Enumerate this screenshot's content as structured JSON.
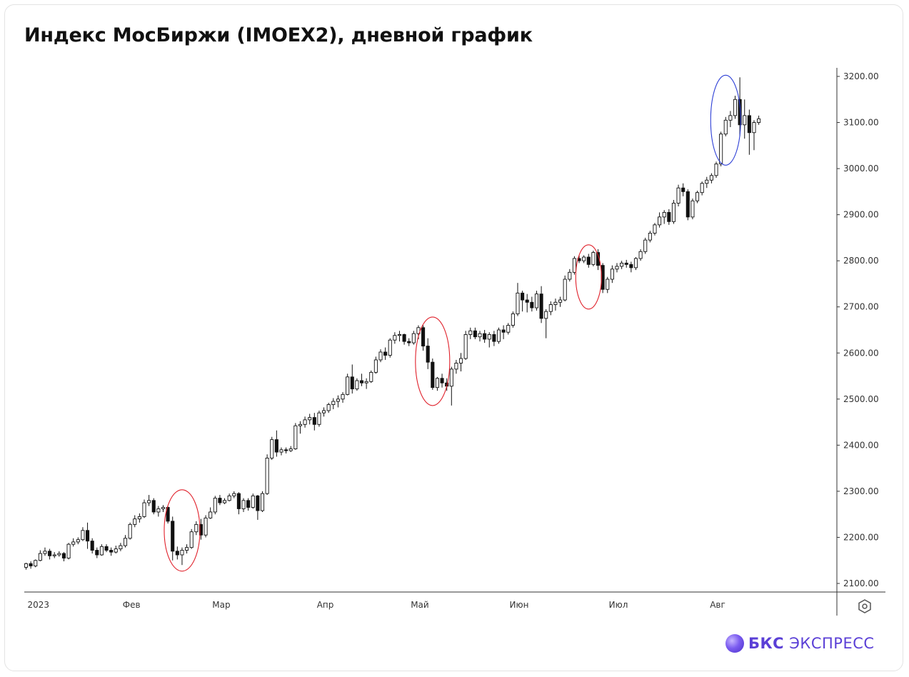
{
  "title": "Индекс МосБиржи (IMOEX2), дневной график",
  "brand": {
    "strong": "БКС",
    "rest": " ЭКСПРЕСС",
    "logo_icon": "bcs-sphere-icon"
  },
  "settings_icon": "settings-hexagon-icon",
  "chart_data": {
    "type": "candlestick",
    "title": "Индекс МосБиржи (IMOEX2), дневной график",
    "y_ticks": [
      "2100.00",
      "2200.00",
      "2300.00",
      "2400.00",
      "2500.00",
      "2600.00",
      "2700.00",
      "2800.00",
      "2900.00",
      "3000.00",
      "3100.00",
      "3200.00"
    ],
    "ylim": [
      2082,
      3220
    ],
    "x_ticks": [
      {
        "label": "2023",
        "index": 0
      },
      {
        "label": "Фев",
        "index": 22
      },
      {
        "label": "Мар",
        "index": 41
      },
      {
        "label": "Апр",
        "index": 63
      },
      {
        "label": "Май",
        "index": 83
      },
      {
        "label": "Июн",
        "index": 104
      },
      {
        "label": "Июл",
        "index": 125
      },
      {
        "label": "Авг",
        "index": 146
      }
    ],
    "candles": [
      [
        2135,
        2145,
        2130,
        2143
      ],
      [
        2143,
        2148,
        2132,
        2138
      ],
      [
        2138,
        2152,
        2135,
        2150
      ],
      [
        2150,
        2172,
        2148,
        2165
      ],
      [
        2165,
        2178,
        2160,
        2170
      ],
      [
        2170,
        2175,
        2152,
        2160
      ],
      [
        2160,
        2168,
        2155,
        2162
      ],
      [
        2162,
        2170,
        2158,
        2165
      ],
      [
        2165,
        2168,
        2148,
        2155
      ],
      [
        2155,
        2188,
        2152,
        2185
      ],
      [
        2185,
        2198,
        2180,
        2190
      ],
      [
        2190,
        2200,
        2185,
        2195
      ],
      [
        2195,
        2222,
        2192,
        2215
      ],
      [
        2215,
        2232,
        2175,
        2192
      ],
      [
        2192,
        2198,
        2165,
        2172
      ],
      [
        2172,
        2178,
        2155,
        2162
      ],
      [
        2162,
        2185,
        2160,
        2180
      ],
      [
        2180,
        2185,
        2168,
        2172
      ],
      [
        2172,
        2178,
        2160,
        2168
      ],
      [
        2168,
        2182,
        2165,
        2175
      ],
      [
        2175,
        2188,
        2170,
        2182
      ],
      [
        2182,
        2205,
        2178,
        2198
      ],
      [
        2198,
        2232,
        2195,
        2228
      ],
      [
        2228,
        2248,
        2222,
        2240
      ],
      [
        2240,
        2252,
        2232,
        2245
      ],
      [
        2245,
        2282,
        2242,
        2275
      ],
      [
        2275,
        2292,
        2268,
        2280
      ],
      [
        2280,
        2285,
        2250,
        2255
      ],
      [
        2255,
        2268,
        2245,
        2262
      ],
      [
        2262,
        2270,
        2255,
        2265
      ],
      [
        2265,
        2268,
        2230,
        2235
      ],
      [
        2235,
        2245,
        2150,
        2170
      ],
      [
        2170,
        2180,
        2152,
        2162
      ],
      [
        2162,
        2178,
        2140,
        2172
      ],
      [
        2172,
        2185,
        2165,
        2178
      ],
      [
        2178,
        2218,
        2175,
        2212
      ],
      [
        2212,
        2235,
        2205,
        2228
      ],
      [
        2228,
        2240,
        2195,
        2205
      ],
      [
        2205,
        2248,
        2200,
        2242
      ],
      [
        2242,
        2265,
        2240,
        2255
      ],
      [
        2255,
        2290,
        2250,
        2285
      ],
      [
        2285,
        2292,
        2270,
        2275
      ],
      [
        2275,
        2285,
        2272,
        2280
      ],
      [
        2280,
        2295,
        2278,
        2290
      ],
      [
        2290,
        2300,
        2285,
        2295
      ],
      [
        2295,
        2298,
        2250,
        2262
      ],
      [
        2262,
        2285,
        2255,
        2280
      ],
      [
        2280,
        2285,
        2258,
        2265
      ],
      [
        2265,
        2295,
        2262,
        2290
      ],
      [
        2290,
        2292,
        2238,
        2258
      ],
      [
        2258,
        2300,
        2255,
        2295
      ],
      [
        2295,
        2380,
        2292,
        2372
      ],
      [
        2372,
        2418,
        2368,
        2412
      ],
      [
        2412,
        2432,
        2375,
        2385
      ],
      [
        2385,
        2395,
        2378,
        2390
      ],
      [
        2390,
        2395,
        2382,
        2388
      ],
      [
        2388,
        2398,
        2385,
        2392
      ],
      [
        2392,
        2448,
        2390,
        2442
      ],
      [
        2442,
        2452,
        2425,
        2445
      ],
      [
        2445,
        2462,
        2438,
        2455
      ],
      [
        2455,
        2468,
        2445,
        2460
      ],
      [
        2460,
        2470,
        2432,
        2445
      ],
      [
        2445,
        2475,
        2440,
        2470
      ],
      [
        2470,
        2482,
        2462,
        2475
      ],
      [
        2475,
        2492,
        2470,
        2488
      ],
      [
        2488,
        2502,
        2478,
        2495
      ],
      [
        2495,
        2508,
        2482,
        2500
      ],
      [
        2500,
        2515,
        2492,
        2510
      ],
      [
        2510,
        2555,
        2508,
        2548
      ],
      [
        2548,
        2575,
        2512,
        2522
      ],
      [
        2522,
        2545,
        2518,
        2540
      ],
      [
        2540,
        2555,
        2528,
        2535
      ],
      [
        2535,
        2545,
        2522,
        2538
      ],
      [
        2538,
        2562,
        2535,
        2558
      ],
      [
        2558,
        2592,
        2555,
        2585
      ],
      [
        2585,
        2608,
        2580,
        2602
      ],
      [
        2602,
        2612,
        2585,
        2595
      ],
      [
        2595,
        2632,
        2590,
        2628
      ],
      [
        2628,
        2645,
        2620,
        2638
      ],
      [
        2638,
        2648,
        2625,
        2640
      ],
      [
        2640,
        2642,
        2618,
        2625
      ],
      [
        2625,
        2632,
        2615,
        2622
      ],
      [
        2622,
        2648,
        2618,
        2642
      ],
      [
        2642,
        2660,
        2630,
        2655
      ],
      [
        2655,
        2660,
        2605,
        2615
      ],
      [
        2615,
        2632,
        2565,
        2580
      ],
      [
        2580,
        2588,
        2520,
        2525
      ],
      [
        2525,
        2548,
        2518,
        2545
      ],
      [
        2545,
        2555,
        2525,
        2535
      ],
      [
        2535,
        2545,
        2518,
        2528
      ],
      [
        2528,
        2570,
        2486,
        2565
      ],
      [
        2565,
        2585,
        2555,
        2578
      ],
      [
        2578,
        2600,
        2560,
        2588
      ],
      [
        2588,
        2648,
        2585,
        2640
      ],
      [
        2640,
        2655,
        2630,
        2648
      ],
      [
        2648,
        2655,
        2630,
        2635
      ],
      [
        2635,
        2648,
        2625,
        2642
      ],
      [
        2642,
        2650,
        2622,
        2630
      ],
      [
        2630,
        2645,
        2612,
        2640
      ],
      [
        2640,
        2648,
        2615,
        2625
      ],
      [
        2625,
        2655,
        2620,
        2650
      ],
      [
        2650,
        2660,
        2630,
        2645
      ],
      [
        2645,
        2665,
        2640,
        2660
      ],
      [
        2660,
        2690,
        2655,
        2685
      ],
      [
        2685,
        2752,
        2680,
        2730
      ],
      [
        2730,
        2735,
        2690,
        2715
      ],
      [
        2715,
        2728,
        2688,
        2710
      ],
      [
        2710,
        2722,
        2690,
        2698
      ],
      [
        2698,
        2735,
        2692,
        2728
      ],
      [
        2728,
        2745,
        2665,
        2675
      ],
      [
        2675,
        2695,
        2632,
        2690
      ],
      [
        2690,
        2712,
        2682,
        2705
      ],
      [
        2705,
        2718,
        2692,
        2710
      ],
      [
        2710,
        2722,
        2700,
        2715
      ],
      [
        2715,
        2768,
        2712,
        2760
      ],
      [
        2760,
        2782,
        2755,
        2775
      ],
      [
        2775,
        2810,
        2770,
        2805
      ],
      [
        2805,
        2812,
        2795,
        2800
      ],
      [
        2800,
        2812,
        2795,
        2808
      ],
      [
        2808,
        2815,
        2785,
        2792
      ],
      [
        2792,
        2822,
        2788,
        2818
      ],
      [
        2818,
        2825,
        2780,
        2790
      ],
      [
        2790,
        2795,
        2730,
        2738
      ],
      [
        2738,
        2765,
        2730,
        2760
      ],
      [
        2760,
        2790,
        2752,
        2782
      ],
      [
        2782,
        2795,
        2775,
        2788
      ],
      [
        2788,
        2800,
        2782,
        2795
      ],
      [
        2795,
        2802,
        2785,
        2792
      ],
      [
        2792,
        2798,
        2775,
        2785
      ],
      [
        2785,
        2808,
        2780,
        2805
      ],
      [
        2805,
        2825,
        2800,
        2820
      ],
      [
        2820,
        2850,
        2815,
        2845
      ],
      [
        2845,
        2865,
        2840,
        2860
      ],
      [
        2860,
        2882,
        2855,
        2878
      ],
      [
        2878,
        2905,
        2872,
        2895
      ],
      [
        2895,
        2910,
        2880,
        2905
      ],
      [
        2905,
        2912,
        2878,
        2885
      ],
      [
        2885,
        2932,
        2880,
        2925
      ],
      [
        2925,
        2965,
        2918,
        2958
      ],
      [
        2958,
        2968,
        2940,
        2950
      ],
      [
        2950,
        2955,
        2888,
        2895
      ],
      [
        2895,
        2935,
        2890,
        2930
      ],
      [
        2930,
        2952,
        2925,
        2948
      ],
      [
        2948,
        2972,
        2942,
        2968
      ],
      [
        2968,
        2982,
        2958,
        2975
      ],
      [
        2975,
        2990,
        2968,
        2985
      ],
      [
        2985,
        3015,
        2980,
        3010
      ],
      [
        3010,
        3080,
        3005,
        3075
      ],
      [
        3075,
        3112,
        3070,
        3105
      ],
      [
        3105,
        3125,
        3090,
        3115
      ],
      [
        3115,
        3158,
        3108,
        3150
      ],
      [
        3150,
        3198,
        3070,
        3095
      ],
      [
        3095,
        3150,
        3065,
        3115
      ],
      [
        3115,
        3128,
        3030,
        3078
      ],
      [
        3078,
        3105,
        3040,
        3100
      ],
      [
        3100,
        3115,
        3095,
        3108
      ]
    ],
    "annotations": [
      {
        "type": "ellipse",
        "color": "#e0202a",
        "center_index": 33,
        "center_value": 2215
      },
      {
        "type": "ellipse",
        "color": "#e0202a",
        "center_index": 86,
        "center_value": 2582
      },
      {
        "type": "ellipse",
        "color": "#e0202a",
        "center_index": 119,
        "center_value": 2765
      },
      {
        "type": "ellipse",
        "color": "#2d3fd6",
        "center_index": 148,
        "center_value": 3105
      }
    ],
    "colors": {
      "up": "#ffffff",
      "down": "#111111",
      "border": "#111111",
      "grid_axis": "#333333"
    }
  }
}
